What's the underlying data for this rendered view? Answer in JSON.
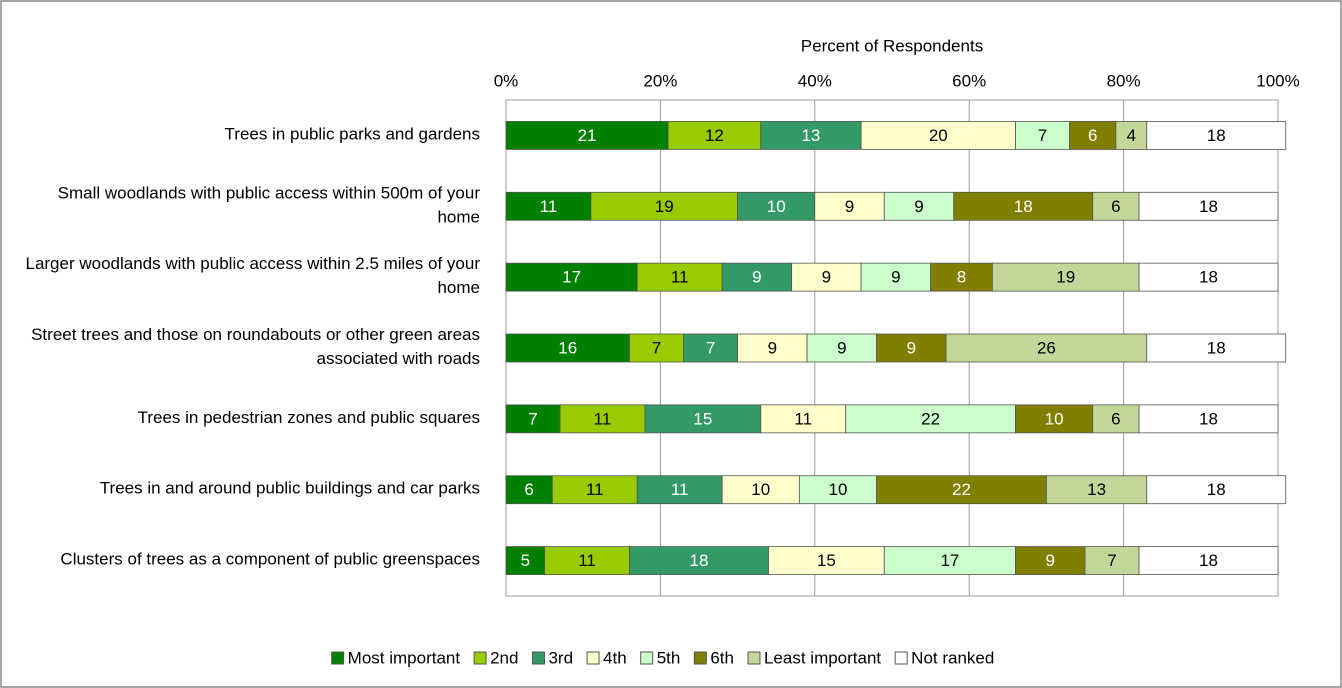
{
  "chart_data": {
    "type": "stacked_bar_horizontal",
    "xlabel": "Percent of Respondents",
    "categories": [
      "Trees in public parks and gardens",
      "Small woodlands with public access within 500m of your home",
      "Larger woodlands with public access within 2.5 miles of your home",
      "Street trees and those on roundabouts or other green areas associated with roads",
      "Trees in pedestrian zones and public squares",
      "Trees in and around public buildings and car parks",
      "Clusters of trees as a component of public greenspaces"
    ],
    "series": [
      {
        "name": "Most important",
        "color": "#008000",
        "label_color": "#ffffff",
        "values": [
          21,
          11,
          17,
          16,
          7,
          6,
          5
        ]
      },
      {
        "name": "2nd",
        "color": "#99cc00",
        "label_color": "#000000",
        "values": [
          12,
          19,
          11,
          7,
          11,
          11,
          11
        ]
      },
      {
        "name": "3rd",
        "color": "#339966",
        "label_color": "#ffffff",
        "values": [
          13,
          10,
          9,
          7,
          15,
          11,
          18
        ]
      },
      {
        "name": "4th",
        "color": "#ffffcc",
        "label_color": "#000000",
        "values": [
          20,
          9,
          9,
          9,
          11,
          10,
          15
        ]
      },
      {
        "name": "5th",
        "color": "#ccffcc",
        "label_color": "#000000",
        "values": [
          7,
          9,
          9,
          9,
          22,
          10,
          17
        ]
      },
      {
        "name": "6th",
        "color": "#808000",
        "label_color": "#ffffff",
        "values": [
          6,
          18,
          8,
          9,
          10,
          22,
          9
        ]
      },
      {
        "name": "Least important",
        "color": "#c4d79b",
        "label_color": "#000000",
        "values": [
          4,
          6,
          19,
          26,
          6,
          13,
          7
        ]
      },
      {
        "name": "Not ranked",
        "color": "#ffffff",
        "label_color": "#000000",
        "values": [
          18,
          18,
          18,
          18,
          18,
          18,
          18
        ]
      }
    ],
    "xlim": [
      0,
      100
    ],
    "xticks": [
      {
        "value": 0,
        "label": "0%"
      },
      {
        "value": 20,
        "label": "20%"
      },
      {
        "value": 40,
        "label": "40%"
      },
      {
        "value": 60,
        "label": "60%"
      },
      {
        "value": 80,
        "label": "80%"
      },
      {
        "value": 100,
        "label": "100%"
      }
    ],
    "grid": true,
    "legend": "bottom"
  }
}
